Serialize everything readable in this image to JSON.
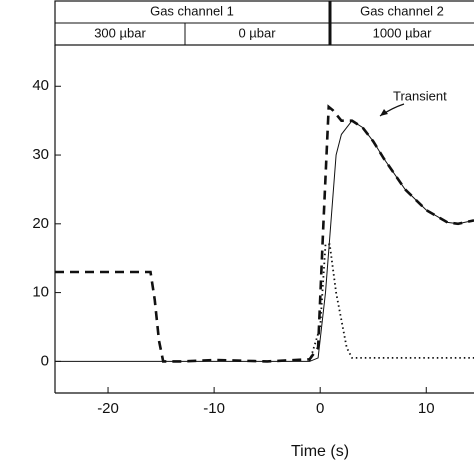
{
  "chart_data": {
    "type": "line",
    "header": {
      "rows": [
        [
          "Gas channel 1",
          "Gas channel 2"
        ],
        [
          "300 µbar",
          "0 µbar",
          "1000 µbar"
        ]
      ]
    },
    "x_label": "Time (s)",
    "annotation": "Transient",
    "xlim": [
      -25,
      14.5
    ],
    "ylim": [
      -4.6,
      46
    ],
    "xticks": [
      -20,
      -10,
      0,
      10
    ],
    "yticks": [
      0,
      10,
      20,
      30,
      40
    ],
    "series": [
      {
        "color": "#111111",
        "dash": "dashed",
        "x": [
          -25,
          -16,
          -15.6,
          -15.2,
          -14.8,
          -13,
          -10,
          -5,
          -1,
          -0.2,
          0.3,
          0.8,
          1.2,
          2,
          3,
          4,
          5,
          6,
          8,
          10,
          12,
          13,
          14.5
        ],
        "values": [
          13,
          13,
          9,
          3,
          0,
          0,
          0.2,
          0,
          0.3,
          2,
          20,
          37,
          36.5,
          35,
          35,
          34,
          32,
          29.5,
          25,
          22,
          20.2,
          20,
          20.5
        ]
      },
      {
        "color": "#111111",
        "dash": "solid",
        "x": [
          -25,
          -1,
          -0.2,
          0.5,
          1,
          1.5,
          2,
          3,
          4,
          5,
          6,
          8,
          10,
          12,
          13,
          14.5
        ],
        "values": [
          0,
          0,
          0.5,
          10,
          20,
          30,
          33,
          35,
          34,
          32,
          29.5,
          25,
          22,
          20.2,
          20,
          20.5
        ]
      },
      {
        "color": "#111111",
        "dash": "dotted",
        "x": [
          -1,
          0,
          0.5,
          0.9,
          1.5,
          2.5,
          3,
          14.5
        ],
        "values": [
          0,
          5,
          17,
          17,
          10,
          2,
          0.5,
          0.5
        ]
      }
    ]
  }
}
